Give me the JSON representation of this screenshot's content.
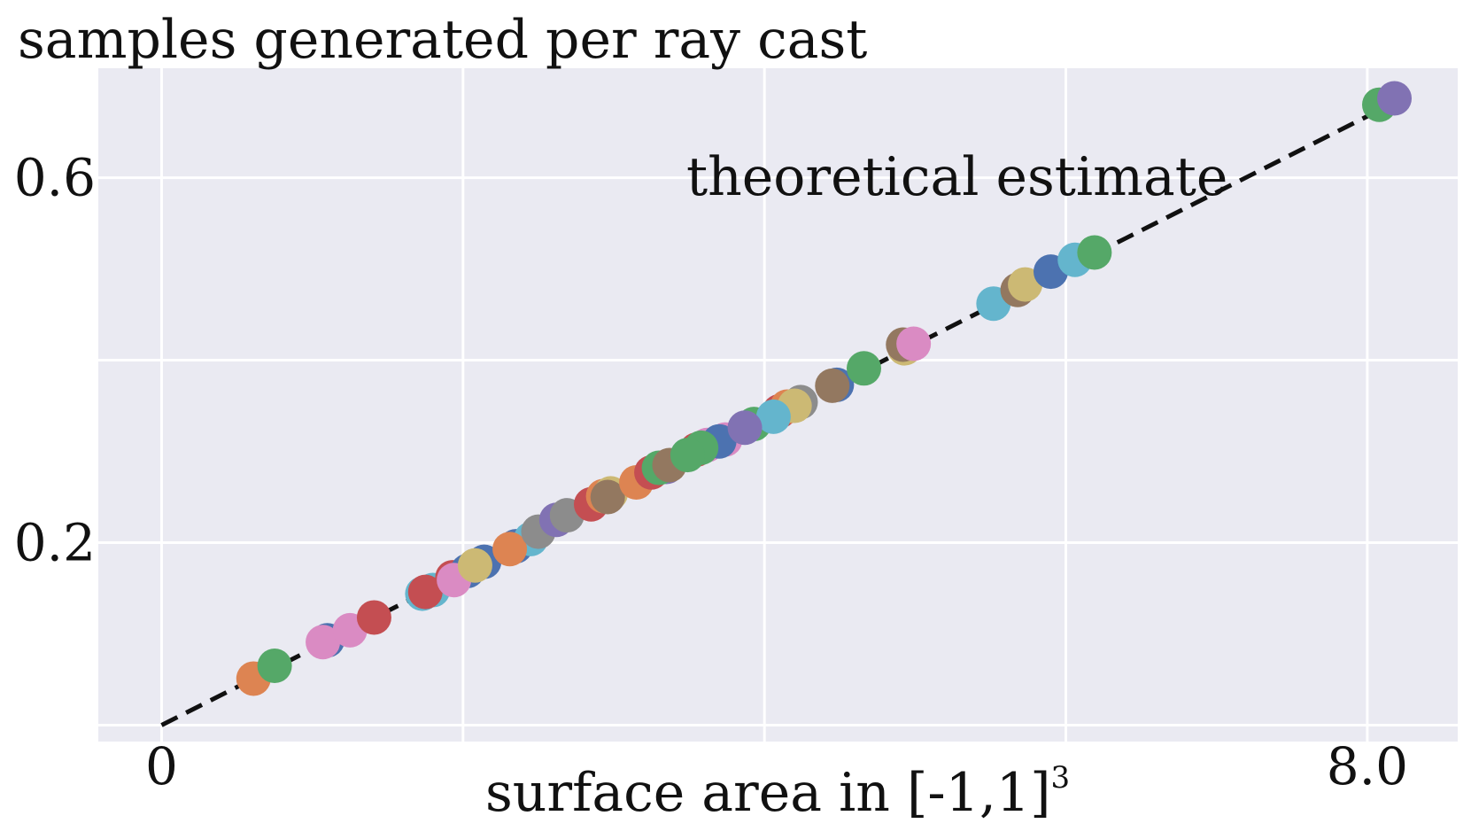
{
  "chart_data": {
    "type": "scatter",
    "title": "samples generated per ray cast",
    "xlabel": "surface area in [-1,1]",
    "xlabel_superscript": "3",
    "annotation": "theoretical estimate",
    "xlim": [
      -0.42,
      8.6
    ],
    "ylim": [
      -0.018,
      0.72
    ],
    "x_ticks": [
      0,
      2,
      4,
      6,
      8
    ],
    "x_tick_labels": [
      "0",
      "",
      "",
      "",
      "8.0"
    ],
    "y_ticks": [
      0,
      0.2,
      0.4,
      0.6
    ],
    "y_tick_labels": [
      "",
      "0.2",
      "",
      "0.6"
    ],
    "grid": true,
    "reference_line": {
      "name": "theoretical estimate",
      "style": "dashed",
      "color": "#111111",
      "x": [
        0,
        8.2
      ],
      "y": [
        0,
        0.684
      ]
    },
    "points": [
      {
        "x": 0.61,
        "y": 0.051,
        "color": "#dd8452"
      },
      {
        "x": 0.75,
        "y": 0.065,
        "color": "#55a868"
      },
      {
        "x": 1.1,
        "y": 0.093,
        "color": "#4c72b0"
      },
      {
        "x": 1.07,
        "y": 0.091,
        "color": "#da8bc3"
      },
      {
        "x": 1.25,
        "y": 0.104,
        "color": "#da8bc3"
      },
      {
        "x": 1.41,
        "y": 0.118,
        "color": "#c44e52"
      },
      {
        "x": 1.73,
        "y": 0.144,
        "color": "#64b5cd"
      },
      {
        "x": 1.8,
        "y": 0.148,
        "color": "#64b5cd"
      },
      {
        "x": 1.75,
        "y": 0.146,
        "color": "#c44e52"
      },
      {
        "x": 1.93,
        "y": 0.162,
        "color": "#c44e52"
      },
      {
        "x": 2.03,
        "y": 0.169,
        "color": "#4c72b0"
      },
      {
        "x": 1.94,
        "y": 0.159,
        "color": "#da8bc3"
      },
      {
        "x": 2.14,
        "y": 0.179,
        "color": "#4c72b0"
      },
      {
        "x": 2.08,
        "y": 0.175,
        "color": "#ccb974"
      },
      {
        "x": 2.35,
        "y": 0.196,
        "color": "#4c72b0"
      },
      {
        "x": 2.45,
        "y": 0.204,
        "color": "#64b5cd"
      },
      {
        "x": 2.31,
        "y": 0.193,
        "color": "#dd8452"
      },
      {
        "x": 2.5,
        "y": 0.212,
        "color": "#8c8c8c"
      },
      {
        "x": 2.62,
        "y": 0.225,
        "color": "#8172b3"
      },
      {
        "x": 2.69,
        "y": 0.23,
        "color": "#8c8c8c"
      },
      {
        "x": 2.85,
        "y": 0.242,
        "color": "#c44e52"
      },
      {
        "x": 2.93,
        "y": 0.251,
        "color": "#dd8452"
      },
      {
        "x": 2.98,
        "y": 0.254,
        "color": "#ccb974"
      },
      {
        "x": 2.96,
        "y": 0.25,
        "color": "#937860"
      },
      {
        "x": 3.15,
        "y": 0.266,
        "color": "#dd8452"
      },
      {
        "x": 3.25,
        "y": 0.277,
        "color": "#c44e52"
      },
      {
        "x": 3.35,
        "y": 0.283,
        "color": "#8172b3"
      },
      {
        "x": 3.3,
        "y": 0.282,
        "color": "#55a868"
      },
      {
        "x": 3.37,
        "y": 0.285,
        "color": "#937860"
      },
      {
        "x": 3.55,
        "y": 0.302,
        "color": "#c44e52"
      },
      {
        "x": 3.62,
        "y": 0.307,
        "color": "#da8bc3"
      },
      {
        "x": 3.74,
        "y": 0.313,
        "color": "#da8bc3"
      },
      {
        "x": 3.7,
        "y": 0.311,
        "color": "#4c72b0"
      },
      {
        "x": 3.58,
        "y": 0.304,
        "color": "#55a868"
      },
      {
        "x": 3.49,
        "y": 0.296,
        "color": "#55a868"
      },
      {
        "x": 3.93,
        "y": 0.33,
        "color": "#55a868"
      },
      {
        "x": 4.1,
        "y": 0.344,
        "color": "#c44e52"
      },
      {
        "x": 4.15,
        "y": 0.349,
        "color": "#dd8452"
      },
      {
        "x": 4.24,
        "y": 0.354,
        "color": "#8c8c8c"
      },
      {
        "x": 4.2,
        "y": 0.35,
        "color": "#ccb974"
      },
      {
        "x": 4.06,
        "y": 0.338,
        "color": "#64b5cd"
      },
      {
        "x": 3.87,
        "y": 0.326,
        "color": "#8172b3"
      },
      {
        "x": 4.48,
        "y": 0.373,
        "color": "#4c72b0"
      },
      {
        "x": 4.45,
        "y": 0.372,
        "color": "#937860"
      },
      {
        "x": 4.66,
        "y": 0.391,
        "color": "#55a868"
      },
      {
        "x": 4.93,
        "y": 0.413,
        "color": "#ccb974"
      },
      {
        "x": 4.92,
        "y": 0.417,
        "color": "#937860"
      },
      {
        "x": 4.99,
        "y": 0.418,
        "color": "#da8bc3"
      },
      {
        "x": 5.52,
        "y": 0.462,
        "color": "#64b5cd"
      },
      {
        "x": 5.68,
        "y": 0.477,
        "color": "#937860"
      },
      {
        "x": 5.73,
        "y": 0.483,
        "color": "#ccb974"
      },
      {
        "x": 5.9,
        "y": 0.497,
        "color": "#4c72b0"
      },
      {
        "x": 6.06,
        "y": 0.51,
        "color": "#64b5cd"
      },
      {
        "x": 6.19,
        "y": 0.518,
        "color": "#55a868"
      },
      {
        "x": 8.08,
        "y": 0.68,
        "color": "#55a868"
      },
      {
        "x": 8.18,
        "y": 0.687,
        "color": "#8172b3"
      }
    ]
  }
}
